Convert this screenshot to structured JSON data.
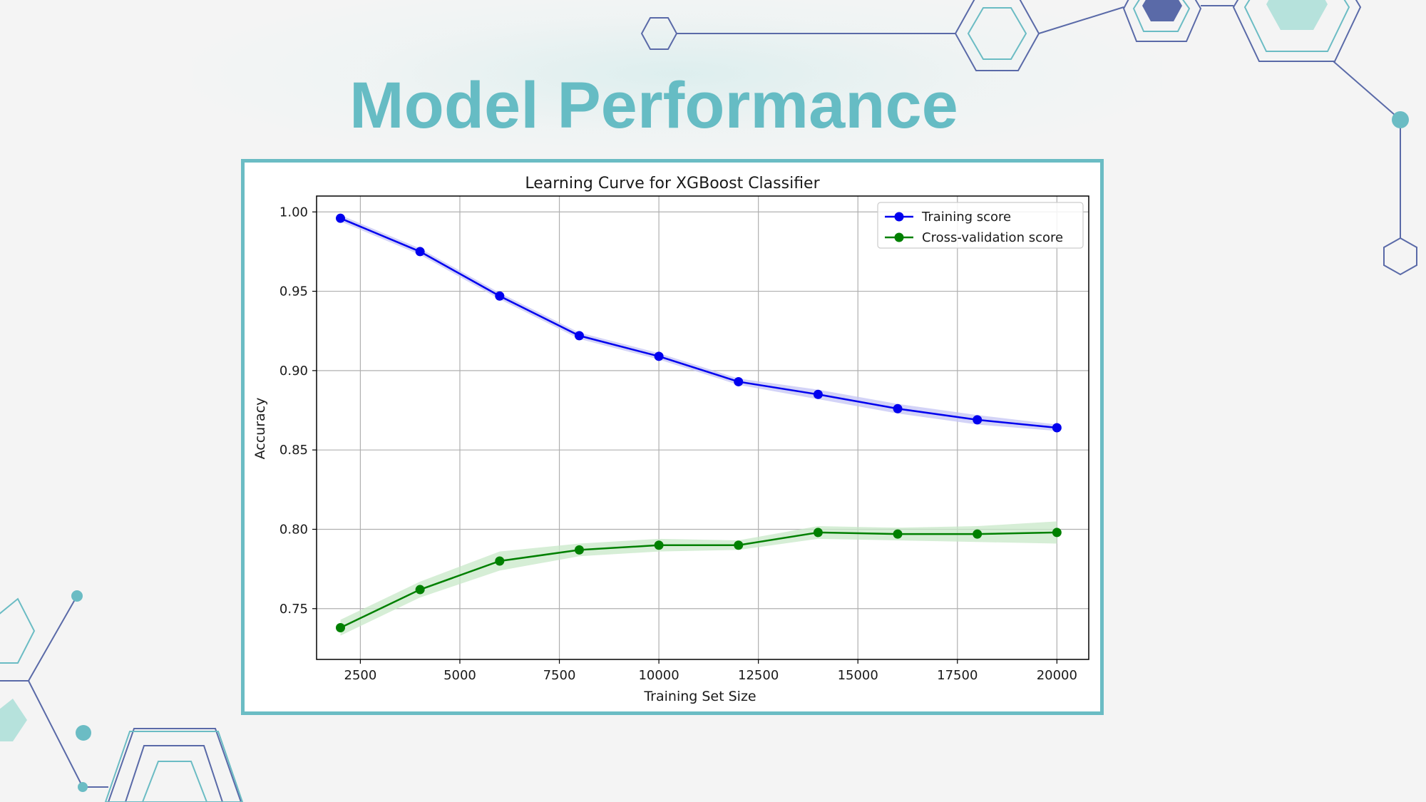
{
  "slide": {
    "title": "Model Performance",
    "accent_color": "#66bcc4",
    "decoration_colors": [
      "#5a6aa8",
      "#6bbcc4",
      "#b6e2dc"
    ]
  },
  "chart_data": {
    "type": "line",
    "title": "Learning Curve for XGBoost Classifier",
    "xlabel": "Training Set Size",
    "ylabel": "Accuracy",
    "xlim": [
      1400,
      20800
    ],
    "ylim": [
      0.718,
      1.01
    ],
    "xticks": [
      2500,
      5000,
      7500,
      10000,
      12500,
      15000,
      17500,
      20000
    ],
    "yticks": [
      0.75,
      0.8,
      0.85,
      0.9,
      0.95,
      1.0
    ],
    "ytick_labels": [
      "0.75",
      "0.80",
      "0.85",
      "0.90",
      "0.95",
      "1.00"
    ],
    "grid": true,
    "legend_position": "top-right",
    "x": [
      2000,
      4000,
      6000,
      8000,
      10000,
      12000,
      14000,
      16000,
      18000,
      20000
    ],
    "series": [
      {
        "name": "Training score",
        "color": "#0000ee",
        "band_color": "#c4c4f4",
        "values": [
          0.996,
          0.975,
          0.947,
          0.922,
          0.909,
          0.893,
          0.885,
          0.876,
          0.869,
          0.864
        ],
        "band": [
          0.002,
          0.002,
          0.002,
          0.002,
          0.002,
          0.002,
          0.003,
          0.003,
          0.003,
          0.002
        ]
      },
      {
        "name": "Cross-validation score",
        "color": "#008000",
        "band_color": "#c8e8c8",
        "values": [
          0.738,
          0.762,
          0.78,
          0.787,
          0.79,
          0.79,
          0.798,
          0.797,
          0.797,
          0.798
        ],
        "band": [
          0.005,
          0.005,
          0.006,
          0.004,
          0.004,
          0.003,
          0.004,
          0.004,
          0.005,
          0.007
        ]
      }
    ]
  }
}
